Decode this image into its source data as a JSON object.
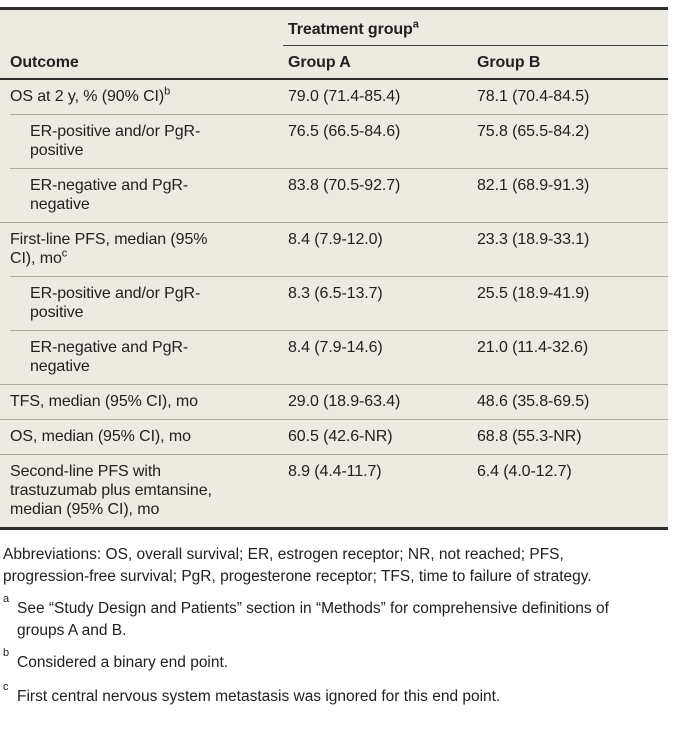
{
  "colors": {
    "page_bg": "#ffffff",
    "table_bg": "#edeae1",
    "rule_dark": "#2e2d2b",
    "rule_mid": "#45443f",
    "rule_light": "#aeaca1",
    "text": "#212121"
  },
  "table": {
    "spanner": {
      "label": "Treatment group",
      "sup": "a"
    },
    "columns": {
      "outcome": "Outcome",
      "group_a": "Group A",
      "group_b": "Group B"
    },
    "rows": [
      {
        "label": "OS at 2 y, % (90% CI)",
        "sup": "b",
        "group_a": "79.0 (71.4-85.4)",
        "group_b": "78.1 (70.4-84.5)"
      },
      {
        "label": "ER-positive and/or PgR-positive",
        "sup": "",
        "group_a": "76.5 (66.5-84.6)",
        "group_b": "75.8 (65.5-84.2)"
      },
      {
        "label": "ER-negative and PgR-negative",
        "sup": "",
        "group_a": "83.8 (70.5-92.7)",
        "group_b": "82.1 (68.9-91.3)"
      },
      {
        "label": "First-line PFS, median (95% CI), mo",
        "sup": "c",
        "group_a": "8.4 (7.9-12.0)",
        "group_b": "23.3 (18.9-33.1)"
      },
      {
        "label": "ER-positive and/or PgR-positive",
        "sup": "",
        "group_a": "8.3 (6.5-13.7)",
        "group_b": "25.5 (18.9-41.9)"
      },
      {
        "label": "ER-negative and PgR-negative",
        "sup": "",
        "group_a": "8.4 (7.9-14.6)",
        "group_b": "21.0 (11.4-32.6)"
      },
      {
        "label": "TFS, median (95% CI), mo",
        "sup": "",
        "group_a": "29.0 (18.9-63.4)",
        "group_b": "48.6 (35.8-69.5)"
      },
      {
        "label": "OS, median (95% CI), mo",
        "sup": "",
        "group_a": "60.5 (42.6-NR)",
        "group_b": "68.8 (55.3-NR)"
      },
      {
        "label": "Second-line PFS with trastuzumab plus emtansine, median (95% CI), mo",
        "sup": "",
        "group_a": "8.9 (4.4-11.7)",
        "group_b": "6.4 (4.0-12.7)"
      }
    ]
  },
  "footnotes": {
    "abbreviations": "Abbreviations: OS, overall survival; ER, estrogen receptor; NR, not reached; PFS, progression-free survival; PgR, progesterone receptor; TFS, time to failure of strategy.",
    "notes": [
      {
        "marker": "a",
        "text": "See “Study Design and Patients” section in “Methods” for comprehensive definitions of groups A and B."
      },
      {
        "marker": "b",
        "text": "Considered a binary end point."
      },
      {
        "marker": "c",
        "text": "First central nervous system metastasis was ignored for this end point."
      }
    ]
  }
}
